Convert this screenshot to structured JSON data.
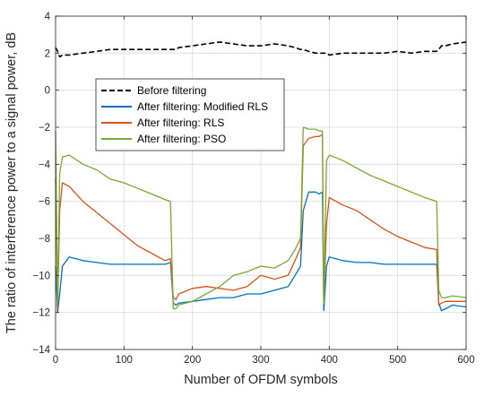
{
  "chart_data": {
    "type": "line",
    "title": "",
    "xlabel": "Number of OFDM symbols",
    "ylabel": "The ratio of interference power to a signal power, dB",
    "xlim": [
      0,
      600
    ],
    "ylim": [
      -14,
      4
    ],
    "xticks": [
      0,
      100,
      200,
      300,
      400,
      500,
      600
    ],
    "yticks": [
      4,
      2,
      0,
      -2,
      -4,
      -6,
      -8,
      -10,
      -12,
      -14
    ],
    "grid": true,
    "legend_position": "upper-left, inside",
    "x": [
      0,
      3,
      6,
      10,
      20,
      40,
      60,
      80,
      100,
      120,
      140,
      160,
      168,
      172,
      176,
      180,
      200,
      220,
      240,
      260,
      280,
      300,
      320,
      340,
      350,
      358,
      362,
      370,
      380,
      385,
      390,
      392,
      396,
      400,
      420,
      440,
      460,
      480,
      500,
      520,
      540,
      557,
      560,
      564,
      570,
      580,
      600
    ],
    "series": [
      {
        "name": "Before filtering",
        "color": "#000000",
        "dash": "6,3",
        "values": [
          2.3,
          2.1,
          1.8,
          1.9,
          1.9,
          2.0,
          2.1,
          2.2,
          2.2,
          2.2,
          2.2,
          2.2,
          2.2,
          2.2,
          2.2,
          2.3,
          2.4,
          2.5,
          2.6,
          2.5,
          2.4,
          2.4,
          2.5,
          2.4,
          2.3,
          2.2,
          2.2,
          2.1,
          2.0,
          2.0,
          2.0,
          2.0,
          2.0,
          1.9,
          2.0,
          2.0,
          2.0,
          2.0,
          2.1,
          2.0,
          2.1,
          2.1,
          2.2,
          2.4,
          2.4,
          2.5,
          2.6
        ]
      },
      {
        "name": "After filtering: Modified RLS",
        "color": "#0072BD",
        "dash": "",
        "values": [
          -9.5,
          -12.0,
          -11.0,
          -9.5,
          -9.0,
          -9.2,
          -9.3,
          -9.4,
          -9.4,
          -9.4,
          -9.4,
          -9.4,
          -9.3,
          -11.5,
          -11.6,
          -11.5,
          -11.4,
          -11.3,
          -11.2,
          -11.2,
          -11.0,
          -11.0,
          -10.8,
          -10.6,
          -10.0,
          -9.5,
          -6.5,
          -5.5,
          -5.5,
          -5.6,
          -5.5,
          -11.9,
          -9.5,
          -9.0,
          -9.2,
          -9.3,
          -9.3,
          -9.4,
          -9.4,
          -9.4,
          -9.4,
          -9.4,
          -11.5,
          -11.9,
          -11.8,
          -11.6,
          -11.7
        ]
      },
      {
        "name": "After filtering: RLS",
        "color": "#D95319",
        "dash": "",
        "values": [
          -4.8,
          -11.8,
          -6.5,
          -5.0,
          -5.2,
          -6.0,
          -6.6,
          -7.2,
          -7.8,
          -8.4,
          -8.8,
          -9.2,
          -9.1,
          -11.2,
          -11.3,
          -11.0,
          -10.7,
          -10.6,
          -10.7,
          -10.8,
          -10.6,
          -10.0,
          -10.2,
          -10.0,
          -9.2,
          -8.5,
          -3.0,
          -2.6,
          -2.5,
          -2.5,
          -2.4,
          -11.5,
          -7.2,
          -5.8,
          -6.2,
          -6.5,
          -7.0,
          -7.5,
          -7.9,
          -8.2,
          -8.5,
          -8.6,
          -11.6,
          -11.5,
          -11.4,
          -11.4,
          -11.4
        ]
      },
      {
        "name": "After filtering: PSO",
        "color": "#77AC30",
        "dash": "",
        "values": [
          -2.2,
          -11.5,
          -4.5,
          -3.6,
          -3.5,
          -4.0,
          -4.3,
          -4.8,
          -5.0,
          -5.3,
          -5.6,
          -5.9,
          -6.0,
          -11.8,
          -11.8,
          -11.6,
          -11.4,
          -11.0,
          -10.6,
          -10.0,
          -9.8,
          -9.5,
          -9.6,
          -9.2,
          -8.6,
          -8.0,
          -2.0,
          -2.1,
          -2.1,
          -2.2,
          -2.2,
          -11.5,
          -3.8,
          -3.5,
          -3.8,
          -4.2,
          -4.6,
          -4.9,
          -5.2,
          -5.5,
          -5.8,
          -6.0,
          -10.8,
          -11.2,
          -11.2,
          -11.1,
          -11.2
        ]
      }
    ]
  }
}
